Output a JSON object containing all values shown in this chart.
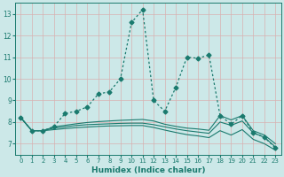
{
  "xlabel": "Humidex (Indice chaleur)",
  "ylabel": "",
  "bg_color": "#cce8e8",
  "grid_color": "#b0d0d0",
  "line_color": "#1a7a6e",
  "xlim": [
    -0.5,
    23.5
  ],
  "ylim": [
    6.5,
    13.5
  ],
  "xticks": [
    0,
    1,
    2,
    3,
    4,
    5,
    6,
    7,
    8,
    9,
    10,
    11,
    12,
    13,
    14,
    15,
    16,
    17,
    18,
    19,
    20,
    21,
    22,
    23
  ],
  "yticks": [
    7,
    8,
    9,
    10,
    11,
    12,
    13
  ],
  "series": [
    {
      "x": [
        0,
        1,
        2,
        3,
        4,
        5,
        6,
        7,
        8,
        9,
        10,
        11,
        12,
        13,
        14,
        15,
        16,
        17,
        18,
        19,
        20,
        21,
        22,
        23
      ],
      "y": [
        8.2,
        7.6,
        7.6,
        7.8,
        8.4,
        8.5,
        8.7,
        9.3,
        9.4,
        10.0,
        12.6,
        13.2,
        9.0,
        8.5,
        9.6,
        11.0,
        10.95,
        11.1,
        8.3,
        7.9,
        8.3,
        7.5,
        7.3,
        6.8
      ],
      "style": "dotted",
      "marker": "D",
      "markersize": 2.5,
      "lw": 0.9
    },
    {
      "x": [
        0,
        1,
        2,
        3,
        4,
        5,
        6,
        7,
        8,
        9,
        10,
        11,
        12,
        13,
        14,
        15,
        16,
        17,
        18,
        19,
        20,
        21,
        22,
        23
      ],
      "y": [
        8.2,
        7.6,
        7.6,
        7.78,
        7.85,
        7.92,
        7.98,
        8.02,
        8.05,
        8.08,
        8.1,
        8.12,
        8.05,
        7.9,
        7.8,
        7.72,
        7.68,
        7.62,
        8.3,
        8.1,
        8.3,
        7.6,
        7.4,
        7.0
      ],
      "style": "solid",
      "marker": null,
      "lw": 0.8
    },
    {
      "x": [
        0,
        1,
        2,
        3,
        4,
        5,
        6,
        7,
        8,
        9,
        10,
        11,
        12,
        13,
        14,
        15,
        16,
        17,
        18,
        19,
        20,
        21,
        22,
        23
      ],
      "y": [
        8.2,
        7.6,
        7.6,
        7.72,
        7.78,
        7.84,
        7.88,
        7.9,
        7.92,
        7.94,
        7.95,
        7.95,
        7.88,
        7.78,
        7.68,
        7.6,
        7.54,
        7.48,
        8.0,
        7.85,
        8.05,
        7.5,
        7.3,
        6.85
      ],
      "style": "solid",
      "marker": null,
      "lw": 0.8
    },
    {
      "x": [
        0,
        1,
        2,
        3,
        4,
        5,
        6,
        7,
        8,
        9,
        10,
        11,
        12,
        13,
        14,
        15,
        16,
        17,
        18,
        19,
        20,
        21,
        22,
        23
      ],
      "y": [
        8.2,
        7.6,
        7.6,
        7.65,
        7.7,
        7.74,
        7.77,
        7.8,
        7.82,
        7.83,
        7.84,
        7.84,
        7.75,
        7.63,
        7.52,
        7.42,
        7.36,
        7.28,
        7.6,
        7.4,
        7.65,
        7.2,
        7.0,
        6.7
      ],
      "style": "solid",
      "marker": null,
      "lw": 0.8
    }
  ]
}
